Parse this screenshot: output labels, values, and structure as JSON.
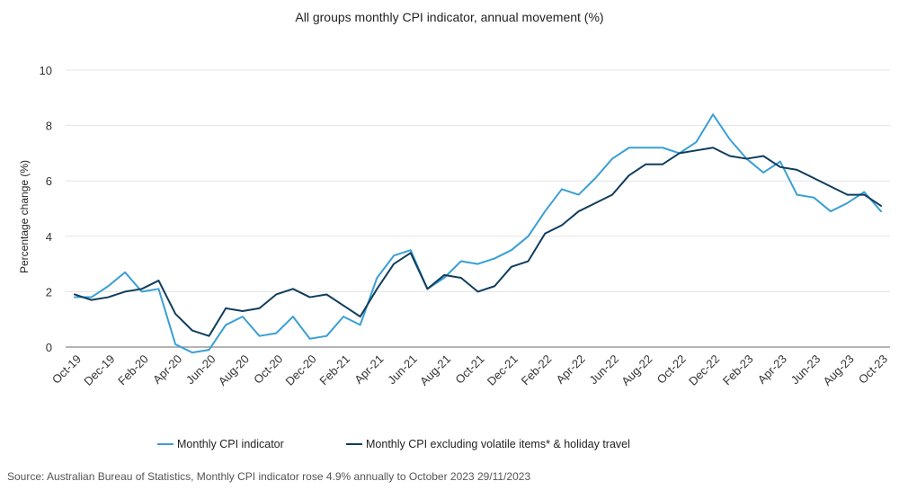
{
  "chart_data": {
    "type": "line",
    "title": "All groups monthly CPI indicator, annual movement (%)",
    "ylabel": "Percentage change (%)",
    "xlabel": "",
    "ylim": [
      -0.5,
      10
    ],
    "yticks": [
      0,
      2,
      4,
      6,
      8,
      10
    ],
    "grid": true,
    "legend_position": "bottom",
    "x": [
      "Oct-19",
      "Nov-19",
      "Dec-19",
      "Jan-20",
      "Feb-20",
      "Mar-20",
      "Apr-20",
      "May-20",
      "Jun-20",
      "Jul-20",
      "Aug-20",
      "Sep-20",
      "Oct-20",
      "Nov-20",
      "Dec-20",
      "Jan-21",
      "Feb-21",
      "Mar-21",
      "Apr-21",
      "May-21",
      "Jun-21",
      "Jul-21",
      "Aug-21",
      "Sep-21",
      "Oct-21",
      "Nov-21",
      "Dec-21",
      "Jan-22",
      "Feb-22",
      "Mar-22",
      "Apr-22",
      "May-22",
      "Jun-22",
      "Jul-22",
      "Aug-22",
      "Sep-22",
      "Oct-22",
      "Nov-22",
      "Dec-22",
      "Jan-23",
      "Feb-23",
      "Mar-23",
      "Apr-23",
      "May-23",
      "Jun-23",
      "Jul-23",
      "Aug-23",
      "Sep-23",
      "Oct-23"
    ],
    "x_tick_labels": [
      "Oct-19",
      "Dec-19",
      "Feb-20",
      "Apr-20",
      "Jun-20",
      "Aug-20",
      "Oct-20",
      "Dec-20",
      "Feb-21",
      "Apr-21",
      "Jun-21",
      "Aug-21",
      "Oct-21",
      "Dec-21",
      "Feb-22",
      "Apr-22",
      "Jun-22",
      "Aug-22",
      "Oct-22",
      "Dec-22",
      "Feb-23",
      "Apr-23",
      "Jun-23",
      "Aug-23",
      "Oct-23"
    ],
    "series": [
      {
        "name": "Monthly CPI indicator",
        "color": "#3a9fd5",
        "values": [
          1.8,
          1.8,
          2.2,
          2.7,
          2.0,
          2.1,
          0.1,
          -0.2,
          -0.1,
          0.8,
          1.1,
          0.4,
          0.5,
          1.1,
          0.3,
          0.4,
          1.1,
          0.8,
          2.5,
          3.3,
          3.5,
          2.1,
          2.5,
          3.1,
          3.0,
          3.2,
          3.5,
          4.0,
          4.9,
          5.7,
          5.5,
          6.1,
          6.8,
          7.2,
          7.2,
          7.2,
          7.0,
          7.4,
          8.4,
          7.5,
          6.8,
          6.3,
          6.7,
          5.5,
          5.4,
          4.9,
          5.2,
          5.6,
          4.9
        ]
      },
      {
        "name": "Monthly CPI excluding volatile items* & holiday travel",
        "color": "#0f3d5e",
        "values": [
          1.9,
          1.7,
          1.8,
          2.0,
          2.1,
          2.4,
          1.2,
          0.6,
          0.4,
          1.4,
          1.3,
          1.4,
          1.9,
          2.1,
          1.8,
          1.9,
          1.5,
          1.1,
          2.1,
          3.0,
          3.4,
          2.1,
          2.6,
          2.5,
          2.0,
          2.2,
          2.9,
          3.1,
          4.1,
          4.4,
          4.9,
          5.2,
          5.5,
          6.2,
          6.6,
          6.6,
          7.0,
          7.1,
          7.2,
          6.9,
          6.8,
          6.9,
          6.5,
          6.4,
          6.1,
          5.8,
          5.5,
          5.5,
          5.1
        ]
      }
    ]
  },
  "source": "Source: Australian Bureau of Statistics, Monthly CPI indicator rose 4.9% annually to October 2023 29/11/2023"
}
